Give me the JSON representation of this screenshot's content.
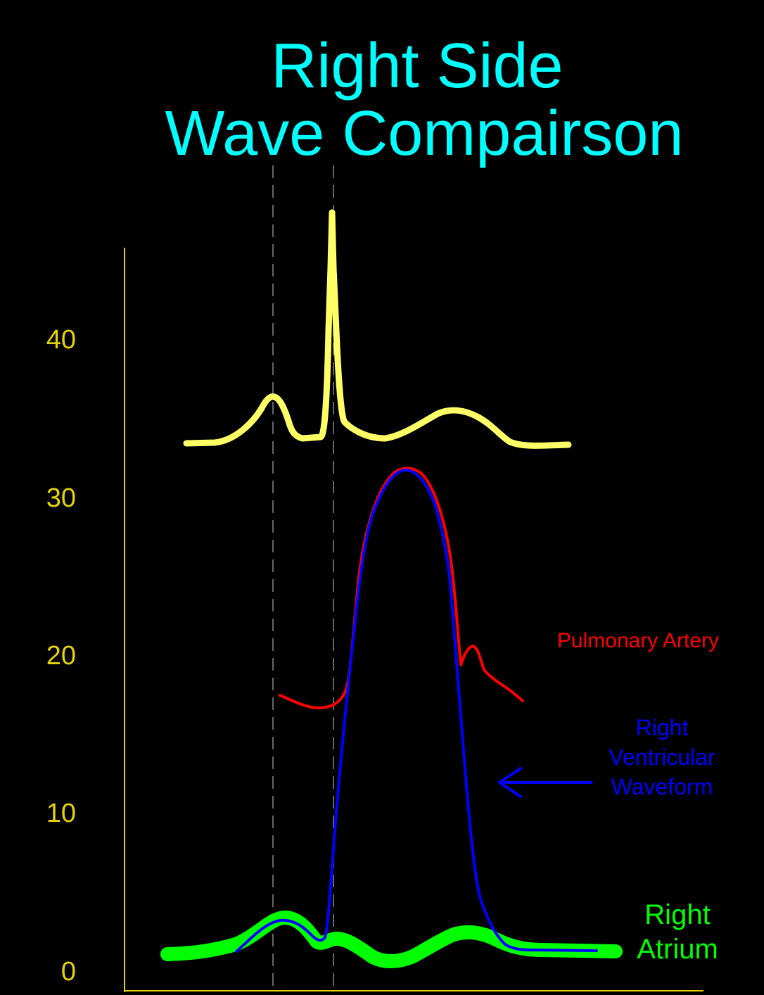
{
  "title": {
    "line1": "Right Side",
    "line2": "Wave Compairson"
  },
  "colors": {
    "background": "#000000",
    "title": "#00FFFF",
    "axis": "#E6D400",
    "ecg": "#FFFF66",
    "pulmonary_artery": "#FF0000",
    "right_ventricle": "#0000FF",
    "right_atrium": "#00FF00",
    "guide_lines": "#888888"
  },
  "axis": {
    "ticks": [
      "40",
      "30",
      "20",
      "10",
      "0"
    ]
  },
  "labels": {
    "pulmonary_artery": "Pulmonary Artery",
    "right_ventricular_line1": "Right",
    "right_ventricular_line2": "Ventricular",
    "right_ventricular_line3": "Waveform",
    "right_atrium_line1": "Right",
    "right_atrium_line2": "Atrium"
  },
  "icons": {
    "rv_pointer": "left-arrow-icon"
  }
}
